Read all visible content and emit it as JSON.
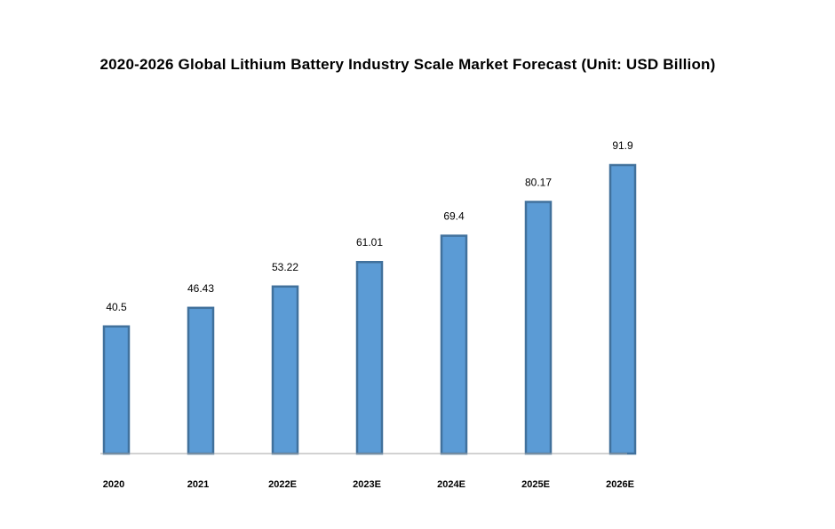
{
  "chart_data": {
    "type": "bar",
    "title": "2020-2026 Global Lithium Battery Industry Scale Market Forecast (Unit: USD Billion)",
    "categories": [
      "2020",
      "2021",
      "2022E",
      "2023E",
      "2024E",
      "2025E",
      "2026E"
    ],
    "values": [
      40.5,
      46.43,
      53.22,
      61.01,
      69.4,
      80.17,
      91.9
    ],
    "data_labels": [
      "40.5",
      "46.43",
      "53.22",
      "61.01",
      "69.4",
      "80.17",
      "91.9"
    ],
    "ylim": [
      0,
      100
    ],
    "grid": false,
    "legend": "none",
    "colors": {
      "bar_fill": "#5b9bd5",
      "bar_stroke": "#41719c",
      "axis": "#a6a6a6"
    }
  }
}
